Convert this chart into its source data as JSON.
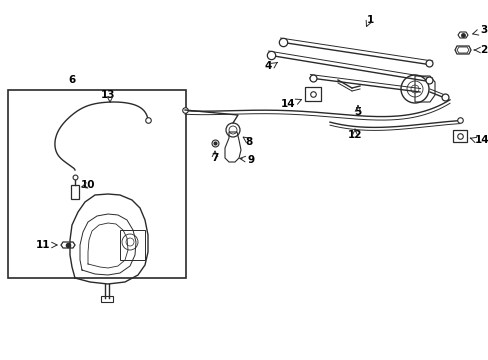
{
  "bg_color": "#ffffff",
  "line_color": "#2a2a2a",
  "label_color": "#000000",
  "lw": 1.0,
  "figsize": [
    4.89,
    3.6
  ],
  "dpi": 100
}
